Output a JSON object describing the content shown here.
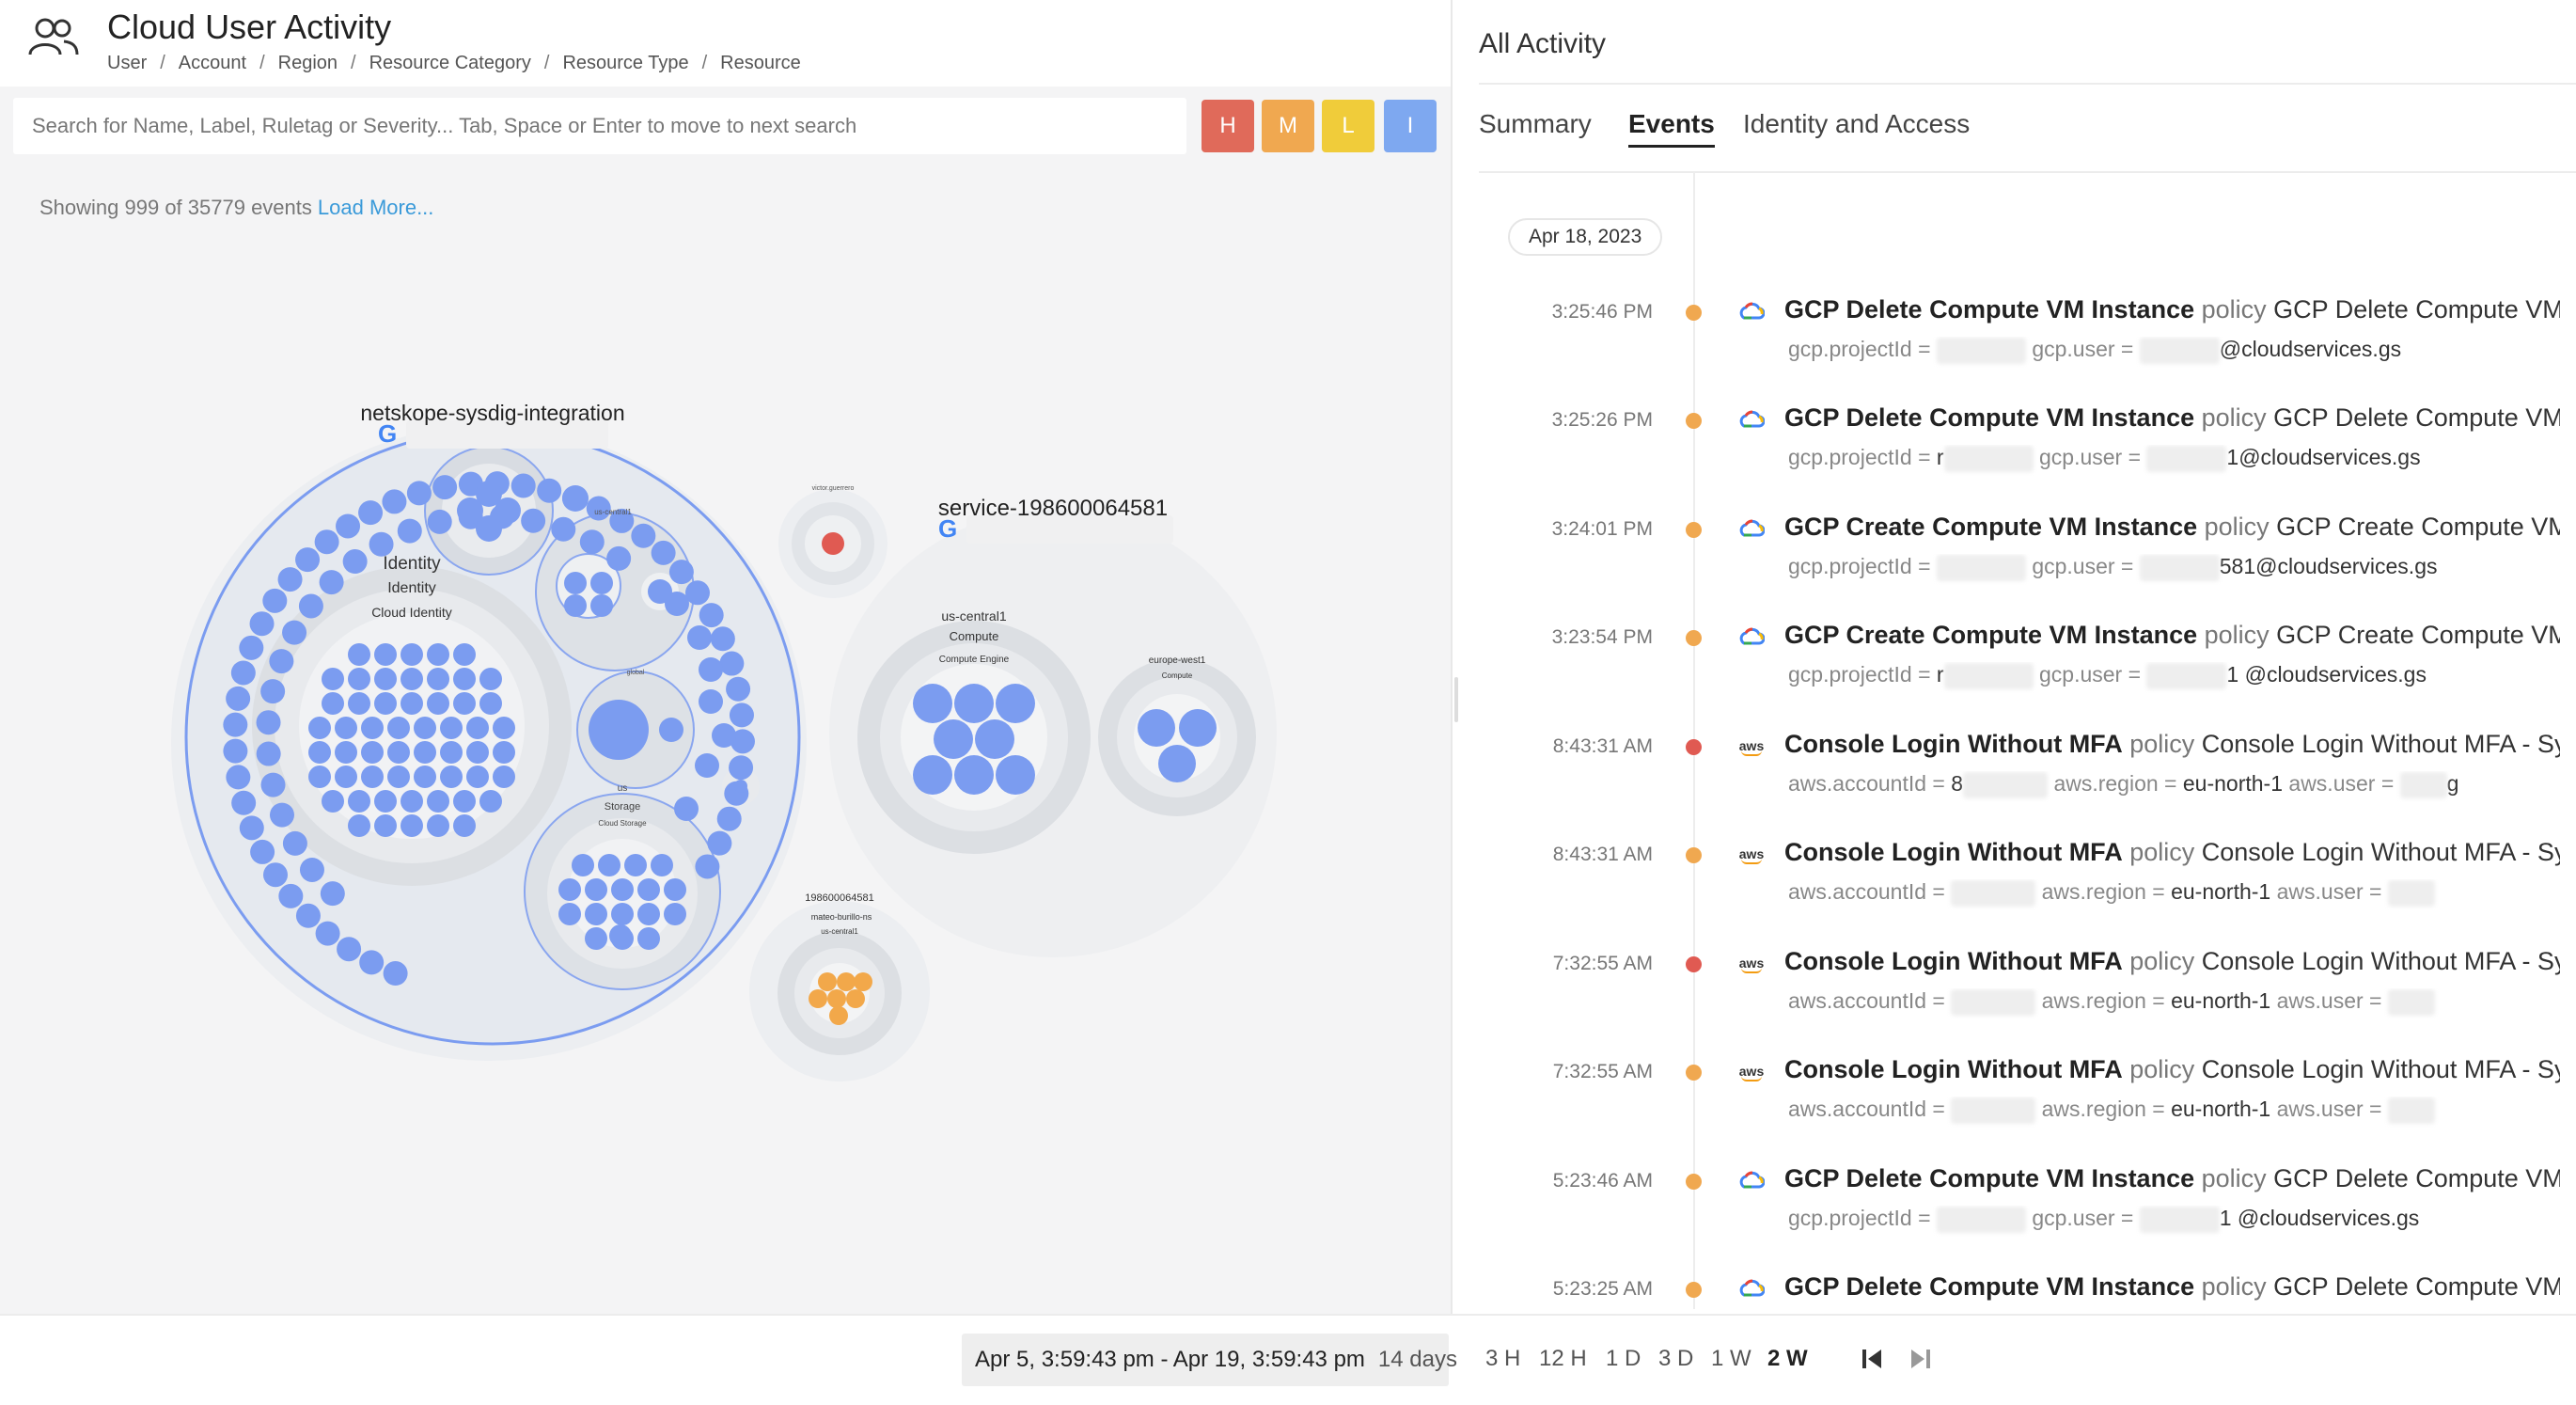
{
  "header": {
    "title": "Cloud User Activity",
    "breadcrumb": [
      "User",
      "Account",
      "Region",
      "Resource Category",
      "Resource Type",
      "Resource"
    ],
    "separator": "/"
  },
  "search": {
    "placeholder": "Search for Name, Label, Ruletag or Severity... Tab, Space or Enter to move to next search",
    "value": ""
  },
  "severity_filters": [
    {
      "label": "H",
      "color": "#e06a5a"
    },
    {
      "label": "M",
      "color": "#f0a850"
    },
    {
      "label": "L",
      "color": "#f0cc3a"
    },
    {
      "label": "I",
      "color": "#7ea8f0"
    }
  ],
  "showing": {
    "text": "Showing 999 of 35779 events",
    "load_more": "Load More..."
  },
  "bubble_chart": {
    "project1_label": "netskope-sysdig-integration",
    "project2_label": "service-198600064581",
    "identity_label": "Identity",
    "identity_sub": "Identity",
    "identity_service": "Cloud Identity",
    "uscentral1_small": "us-central1",
    "global_small": "global",
    "us_storage": "us",
    "storage_label": "Storage",
    "cloud_storage": "Cloud Storage",
    "victor_label": "victor.guerrero",
    "p2_region1": "us-central1",
    "p2_compute1": "Compute",
    "p2_engine1": "Compute Engine",
    "p2_region2": "europe-west1",
    "p2_compute2": "Compute",
    "p3_id": "198600064581",
    "p3_user": "mateo-burillo-ns",
    "p3_region": "us-central1",
    "colors": {
      "blue": "#7b9cf0",
      "orange": "#f2a84a",
      "red": "#e05a52"
    }
  },
  "right_panel": {
    "title": "All Activity",
    "tabs": [
      {
        "label": "Summary",
        "active": false
      },
      {
        "label": "Events",
        "active": true
      },
      {
        "label": "Identity and Access",
        "active": false
      }
    ],
    "date": "Apr 18, 2023"
  },
  "events": [
    {
      "time": "3:25:46 PM",
      "severity": "medium",
      "platform": "gcp",
      "name": "GCP Delete Compute VM Instance",
      "policy_word": "policy",
      "policy": "GCP Delete Compute VM In",
      "k1": "gcp.projectId",
      "v1": "",
      "k2": "gcp.user",
      "v2": "@cloudservices.gs",
      "k3": "",
      "v3": ""
    },
    {
      "time": "3:25:26 PM",
      "severity": "medium",
      "platform": "gcp",
      "name": "GCP Delete Compute VM Instance",
      "policy_word": "policy",
      "policy": "GCP Delete Compute VM In",
      "k1": "gcp.projectId",
      "v1": "r",
      "k2": "gcp.user",
      "v2": "1@cloudservices.gs",
      "k3": "",
      "v3": ""
    },
    {
      "time": "3:24:01 PM",
      "severity": "medium",
      "platform": "gcp",
      "name": "GCP Create Compute VM Instance",
      "policy_word": "policy",
      "policy": "GCP Create Compute VM Ir",
      "k1": "gcp.projectId",
      "v1": "",
      "k2": "gcp.user",
      "v2": "581@cloudservices.gs",
      "k3": "",
      "v3": ""
    },
    {
      "time": "3:23:54 PM",
      "severity": "medium",
      "platform": "gcp",
      "name": "GCP Create Compute VM Instance",
      "policy_word": "policy",
      "policy": "GCP Create Compute VM Ir",
      "k1": "gcp.projectId",
      "v1": "r",
      "k2": "gcp.user",
      "v2": "1 @cloudservices.gs",
      "k3": "",
      "v3": ""
    },
    {
      "time": "8:43:31 AM",
      "severity": "high",
      "platform": "aws",
      "name": "Console Login Without MFA",
      "policy_word": "policy",
      "policy": "Console Login Without MFA - Sysd",
      "k1": "aws.accountId",
      "v1": "8",
      "k2": "aws.region",
      "v2": "eu-north-1",
      "k3": "aws.user",
      "v3": "g"
    },
    {
      "time": "8:43:31 AM",
      "severity": "medium",
      "platform": "aws",
      "name": "Console Login Without MFA",
      "policy_word": "policy",
      "policy": "Console Login Without MFA - Sysd",
      "k1": "aws.accountId",
      "v1": "",
      "k2": "aws.region",
      "v2": "eu-north-1",
      "k3": "aws.user",
      "v3": ""
    },
    {
      "time": "7:32:55 AM",
      "severity": "high",
      "platform": "aws",
      "name": "Console Login Without MFA",
      "policy_word": "policy",
      "policy": "Console Login Without MFA - Sysd",
      "k1": "aws.accountId",
      "v1": "",
      "k2": "aws.region",
      "v2": "eu-north-1",
      "k3": "aws.user",
      "v3": ""
    },
    {
      "time": "7:32:55 AM",
      "severity": "medium",
      "platform": "aws",
      "name": "Console Login Without MFA",
      "policy_word": "policy",
      "policy": "Console Login Without MFA - Sysd",
      "k1": "aws.accountId",
      "v1": "",
      "k2": "aws.region",
      "v2": "eu-north-1",
      "k3": "aws.user",
      "v3": ""
    },
    {
      "time": "5:23:46 AM",
      "severity": "medium",
      "platform": "gcp",
      "name": "GCP Delete Compute VM Instance",
      "policy_word": "policy",
      "policy": "GCP Delete Compute VM In",
      "k1": "gcp.projectId",
      "v1": "",
      "k2": "gcp.user",
      "v2": "1 @cloudservices.gs",
      "k3": "",
      "v3": ""
    },
    {
      "time": "5:23:25 AM",
      "severity": "medium",
      "platform": "gcp",
      "name": "GCP Delete Compute VM Instance",
      "policy_word": "policy",
      "policy": "GCP Delete Compute VM In",
      "k1": "",
      "v1": "",
      "k2": "",
      "v2": "",
      "k3": "",
      "v3": ""
    }
  ],
  "severity_colors": {
    "high": "#e05a52",
    "medium": "#f0a850"
  },
  "time_range": {
    "range": "Apr 5, 3:59:43 pm - Apr 19, 3:59:43 pm",
    "days": "14 days",
    "periods": [
      {
        "label": "3 H",
        "active": false
      },
      {
        "label": "12 H",
        "active": false
      },
      {
        "label": "1 D",
        "active": false
      },
      {
        "label": "3 D",
        "active": false
      },
      {
        "label": "1 W",
        "active": false
      },
      {
        "label": "2 W",
        "active": true
      }
    ],
    "first_icon": "skip-to-start-icon",
    "last_icon": "skip-to-end-icon"
  }
}
